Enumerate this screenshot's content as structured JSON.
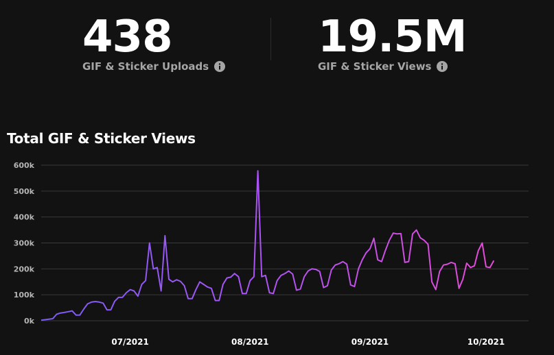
{
  "stats": {
    "uploads": {
      "value": "438",
      "label": "GIF & Sticker Uploads",
      "icon": "info-icon"
    },
    "views": {
      "value": "19.5M",
      "label": "GIF & Sticker Views",
      "icon": "info-icon"
    }
  },
  "colors": {
    "line_start": "#7b5cf5",
    "line_mid": "#a855f7",
    "line_end": "#e84ad8",
    "grid": "#3a3a3a"
  },
  "chart_data": {
    "type": "line",
    "title": "Total GIF & Sticker Views",
    "xlabel": "",
    "ylabel": "",
    "ylim": [
      0,
      600000
    ],
    "yticks": [
      0,
      100000,
      200000,
      300000,
      400000,
      500000,
      600000
    ],
    "ytick_labels": [
      "0k",
      "100k",
      "200k",
      "300k",
      "400k",
      "500k",
      "600k"
    ],
    "x_start": "2021-06-08",
    "x_end": "2021-10-12",
    "xticks": [
      "2021-07-01",
      "2021-08-01",
      "2021-09-01",
      "2021-10-01"
    ],
    "xtick_labels": [
      "07/2021",
      "08/2021",
      "09/2021",
      "10/2021"
    ],
    "grid": true,
    "legend": "none",
    "series": [
      {
        "values": [
          {
            "x": "2021-06-08",
            "y": 2000
          },
          {
            "x": "2021-06-09",
            "y": 4000
          },
          {
            "x": "2021-06-10",
            "y": 6000
          },
          {
            "x": "2021-06-11",
            "y": 8000
          },
          {
            "x": "2021-06-12",
            "y": 25000
          },
          {
            "x": "2021-06-13",
            "y": 30000
          },
          {
            "x": "2021-06-14",
            "y": 32000
          },
          {
            "x": "2021-06-15",
            "y": 35000
          },
          {
            "x": "2021-06-16",
            "y": 38000
          },
          {
            "x": "2021-06-17",
            "y": 22000
          },
          {
            "x": "2021-06-18",
            "y": 22000
          },
          {
            "x": "2021-06-19",
            "y": 45000
          },
          {
            "x": "2021-06-20",
            "y": 65000
          },
          {
            "x": "2021-06-21",
            "y": 72000
          },
          {
            "x": "2021-06-22",
            "y": 74000
          },
          {
            "x": "2021-06-23",
            "y": 72000
          },
          {
            "x": "2021-06-24",
            "y": 68000
          },
          {
            "x": "2021-06-25",
            "y": 42000
          },
          {
            "x": "2021-06-26",
            "y": 42000
          },
          {
            "x": "2021-06-27",
            "y": 75000
          },
          {
            "x": "2021-06-28",
            "y": 90000
          },
          {
            "x": "2021-06-29",
            "y": 90000
          },
          {
            "x": "2021-06-30",
            "y": 108000
          },
          {
            "x": "2021-07-01",
            "y": 120000
          },
          {
            "x": "2021-07-02",
            "y": 115000
          },
          {
            "x": "2021-07-03",
            "y": 95000
          },
          {
            "x": "2021-07-04",
            "y": 140000
          },
          {
            "x": "2021-07-05",
            "y": 155000
          },
          {
            "x": "2021-07-06",
            "y": 300000
          },
          {
            "x": "2021-07-07",
            "y": 200000
          },
          {
            "x": "2021-07-08",
            "y": 205000
          },
          {
            "x": "2021-07-09",
            "y": 115000
          },
          {
            "x": "2021-07-10",
            "y": 328000
          },
          {
            "x": "2021-07-11",
            "y": 160000
          },
          {
            "x": "2021-07-12",
            "y": 150000
          },
          {
            "x": "2021-07-13",
            "y": 158000
          },
          {
            "x": "2021-07-14",
            "y": 152000
          },
          {
            "x": "2021-07-15",
            "y": 135000
          },
          {
            "x": "2021-07-16",
            "y": 85000
          },
          {
            "x": "2021-07-17",
            "y": 85000
          },
          {
            "x": "2021-07-18",
            "y": 120000
          },
          {
            "x": "2021-07-19",
            "y": 150000
          },
          {
            "x": "2021-07-20",
            "y": 140000
          },
          {
            "x": "2021-07-21",
            "y": 130000
          },
          {
            "x": "2021-07-22",
            "y": 125000
          },
          {
            "x": "2021-07-23",
            "y": 78000
          },
          {
            "x": "2021-07-24",
            "y": 78000
          },
          {
            "x": "2021-07-25",
            "y": 140000
          },
          {
            "x": "2021-07-26",
            "y": 165000
          },
          {
            "x": "2021-07-27",
            "y": 168000
          },
          {
            "x": "2021-07-28",
            "y": 182000
          },
          {
            "x": "2021-07-29",
            "y": 170000
          },
          {
            "x": "2021-07-30",
            "y": 105000
          },
          {
            "x": "2021-07-31",
            "y": 105000
          },
          {
            "x": "2021-08-01",
            "y": 155000
          },
          {
            "x": "2021-08-02",
            "y": 170000
          },
          {
            "x": "2021-08-03",
            "y": 578000
          },
          {
            "x": "2021-08-04",
            "y": 170000
          },
          {
            "x": "2021-08-05",
            "y": 175000
          },
          {
            "x": "2021-08-06",
            "y": 108000
          },
          {
            "x": "2021-08-07",
            "y": 105000
          },
          {
            "x": "2021-08-08",
            "y": 155000
          },
          {
            "x": "2021-08-09",
            "y": 175000
          },
          {
            "x": "2021-08-10",
            "y": 182000
          },
          {
            "x": "2021-08-11",
            "y": 192000
          },
          {
            "x": "2021-08-12",
            "y": 180000
          },
          {
            "x": "2021-08-13",
            "y": 118000
          },
          {
            "x": "2021-08-14",
            "y": 122000
          },
          {
            "x": "2021-08-15",
            "y": 170000
          },
          {
            "x": "2021-08-16",
            "y": 192000
          },
          {
            "x": "2021-08-17",
            "y": 200000
          },
          {
            "x": "2021-08-18",
            "y": 198000
          },
          {
            "x": "2021-08-19",
            "y": 190000
          },
          {
            "x": "2021-08-20",
            "y": 128000
          },
          {
            "x": "2021-08-21",
            "y": 135000
          },
          {
            "x": "2021-08-22",
            "y": 195000
          },
          {
            "x": "2021-08-23",
            "y": 215000
          },
          {
            "x": "2021-08-24",
            "y": 220000
          },
          {
            "x": "2021-08-25",
            "y": 228000
          },
          {
            "x": "2021-08-26",
            "y": 218000
          },
          {
            "x": "2021-08-27",
            "y": 138000
          },
          {
            "x": "2021-08-28",
            "y": 132000
          },
          {
            "x": "2021-08-29",
            "y": 200000
          },
          {
            "x": "2021-08-30",
            "y": 235000
          },
          {
            "x": "2021-08-31",
            "y": 262000
          },
          {
            "x": "2021-09-01",
            "y": 278000
          },
          {
            "x": "2021-09-02",
            "y": 318000
          },
          {
            "x": "2021-09-03",
            "y": 235000
          },
          {
            "x": "2021-09-04",
            "y": 228000
          },
          {
            "x": "2021-09-05",
            "y": 272000
          },
          {
            "x": "2021-09-06",
            "y": 310000
          },
          {
            "x": "2021-09-07",
            "y": 338000
          },
          {
            "x": "2021-09-08",
            "y": 335000
          },
          {
            "x": "2021-09-09",
            "y": 336000
          },
          {
            "x": "2021-09-10",
            "y": 225000
          },
          {
            "x": "2021-09-11",
            "y": 228000
          },
          {
            "x": "2021-09-12",
            "y": 335000
          },
          {
            "x": "2021-09-13",
            "y": 350000
          },
          {
            "x": "2021-09-14",
            "y": 320000
          },
          {
            "x": "2021-09-15",
            "y": 310000
          },
          {
            "x": "2021-09-16",
            "y": 295000
          },
          {
            "x": "2021-09-17",
            "y": 150000
          },
          {
            "x": "2021-09-18",
            "y": 120000
          },
          {
            "x": "2021-09-19",
            "y": 190000
          },
          {
            "x": "2021-09-20",
            "y": 215000
          },
          {
            "x": "2021-09-21",
            "y": 218000
          },
          {
            "x": "2021-09-22",
            "y": 225000
          },
          {
            "x": "2021-09-23",
            "y": 220000
          },
          {
            "x": "2021-09-24",
            "y": 125000
          },
          {
            "x": "2021-09-25",
            "y": 160000
          },
          {
            "x": "2021-09-26",
            "y": 222000
          },
          {
            "x": "2021-09-27",
            "y": 205000
          },
          {
            "x": "2021-09-28",
            "y": 212000
          },
          {
            "x": "2021-09-29",
            "y": 270000
          },
          {
            "x": "2021-09-30",
            "y": 300000
          },
          {
            "x": "2021-10-01",
            "y": 208000
          },
          {
            "x": "2021-10-02",
            "y": 205000
          },
          {
            "x": "2021-10-03",
            "y": 232000
          }
        ]
      }
    ]
  }
}
